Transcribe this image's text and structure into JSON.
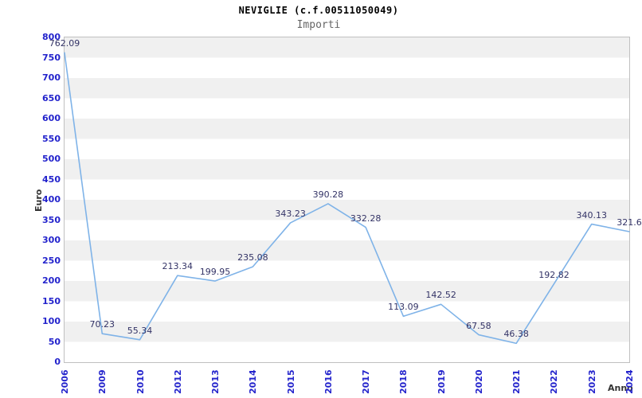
{
  "header": {
    "title": "NEVIGLIE (c.f.00511050049)",
    "subtitle": "Importi"
  },
  "chart_data": {
    "type": "line",
    "title": "NEVIGLIE (c.f.00511050049)",
    "subtitle": "Importi",
    "xlabel": "Anno",
    "ylabel": "Euro",
    "categories": [
      "2006",
      "2009",
      "2010",
      "2012",
      "2013",
      "2014",
      "2015",
      "2016",
      "2017",
      "2018",
      "2019",
      "2020",
      "2021",
      "2022",
      "2023",
      "2024"
    ],
    "values": [
      762.09,
      70.23,
      55.34,
      213.34,
      199.95,
      235.08,
      343.23,
      390.28,
      332.28,
      113.09,
      142.52,
      67.58,
      46.38,
      192.82,
      340.13,
      321.6
    ],
    "point_labels": [
      "762.09",
      "70.23",
      "55.34",
      "213.34",
      "199.95",
      "235.08",
      "343.23",
      "390.28",
      "332.28",
      "113.09",
      "142.52",
      "67.58",
      "46.38",
      "192.82",
      "340.13",
      "321.6"
    ],
    "ylim": [
      0,
      800
    ],
    "ytick_step": 50,
    "legend": "none",
    "grid": "alternating-horizontal-bands",
    "colors": {
      "line": "#7fb3e8",
      "tick_label": "#2323cc",
      "data_label": "#333366",
      "band": "#f0f0f0",
      "plot_border": "#c0c0c0",
      "title": "#000000",
      "subtitle": "#666666",
      "axis_title": "#333333",
      "background": "#ffffff"
    }
  }
}
